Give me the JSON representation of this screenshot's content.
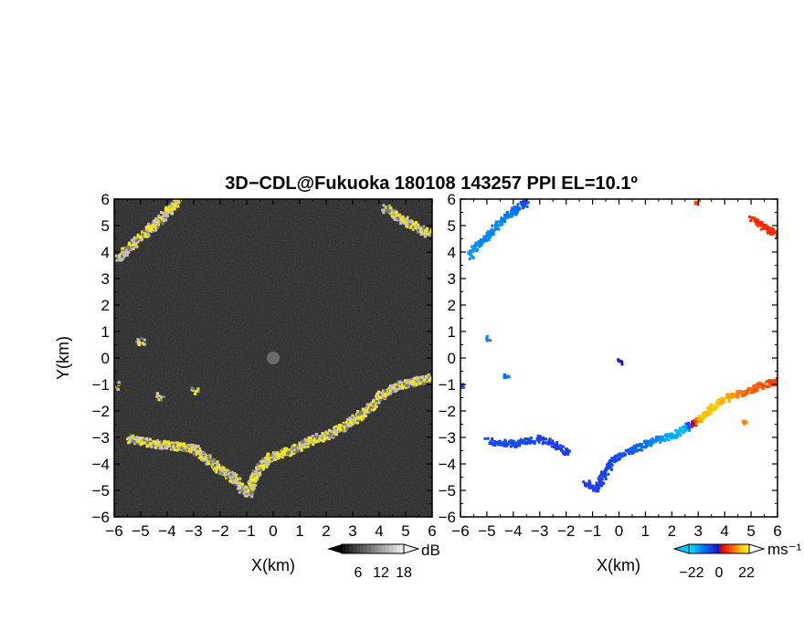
{
  "chart_data": [
    {
      "type": "heatmap",
      "panel": "left",
      "title": "3D−CDL@Fukuoka 180108 143257 PPI EL=10.1º",
      "xlabel": "X(km)",
      "ylabel": "Y(km)",
      "xlim": [
        -6,
        6
      ],
      "ylim": [
        -6,
        6
      ],
      "xticks": [
        "−6",
        "−5",
        "−4",
        "−3",
        "−2",
        "−1",
        "0",
        "1",
        "2",
        "3",
        "4",
        "5",
        "6"
      ],
      "yticks": [
        "−6",
        "−5",
        "−4",
        "−3",
        "−2",
        "−1",
        "0",
        "1",
        "2",
        "3",
        "4",
        "5",
        "6"
      ],
      "background_color": "#2b2b2b",
      "echo_colors": {
        "low": "#bdbdbd",
        "high": "#f5e620"
      },
      "colorbar": {
        "unit": "dB",
        "ticks": [
          "6",
          "12",
          "18"
        ],
        "range": [
          0,
          24
        ]
      },
      "echo_path": [
        [
          -5.9,
          3.8
        ],
        [
          -5.3,
          4.4
        ],
        [
          -4.6,
          5.0
        ],
        [
          -4.0,
          5.6
        ],
        [
          -3.6,
          6.0
        ],
        [
          -6.0,
          -1.0
        ],
        [
          -5.5,
          -3.0
        ],
        [
          -4.5,
          -3.2
        ],
        [
          -3.5,
          -3.3
        ],
        [
          -3.0,
          -3.4
        ],
        [
          -2.5,
          -3.8
        ],
        [
          -2.0,
          -4.2
        ],
        [
          -1.5,
          -4.5
        ],
        [
          -1.2,
          -4.9
        ],
        [
          -1.0,
          -5.1
        ],
        [
          -0.7,
          -4.3
        ],
        [
          -0.2,
          -3.7
        ],
        [
          0.5,
          -3.5
        ],
        [
          1.0,
          -3.3
        ],
        [
          1.5,
          -3.0
        ],
        [
          2.0,
          -2.9
        ],
        [
          2.5,
          -2.6
        ],
        [
          3.0,
          -2.3
        ],
        [
          3.5,
          -1.9
        ],
        [
          4.0,
          -1.4
        ],
        [
          4.5,
          -1.1
        ],
        [
          5.0,
          -0.9
        ],
        [
          5.5,
          -0.8
        ],
        [
          6.0,
          -0.7
        ],
        [
          4.2,
          5.7
        ],
        [
          4.8,
          5.3
        ],
        [
          5.5,
          4.9
        ],
        [
          6.0,
          4.7
        ],
        [
          -5.0,
          0.6
        ],
        [
          -5.1,
          0.7
        ],
        [
          -3.0,
          -1.2
        ],
        [
          -4.3,
          -1.4
        ]
      ]
    },
    {
      "type": "heatmap",
      "panel": "right",
      "xlabel": "X(km)",
      "xlim": [
        -6,
        6
      ],
      "ylim": [
        -6,
        6
      ],
      "xticks": [
        "−6",
        "−5",
        "−4",
        "−3",
        "−2",
        "−1",
        "0",
        "1",
        "2",
        "3",
        "4",
        "5",
        "6"
      ],
      "yticks": [
        "−6",
        "−5",
        "−4",
        "−3",
        "−2",
        "−1",
        "0",
        "1",
        "2",
        "3",
        "4",
        "5",
        "6"
      ],
      "colorbar": {
        "unit": "ms⁻¹",
        "ticks": [
          "−22",
          "0",
          "22"
        ],
        "range": [
          -30,
          30
        ]
      },
      "velocity_echoes": [
        {
          "x": -5.7,
          "y": 3.9,
          "v": -20
        },
        {
          "x": -5.2,
          "y": 4.5,
          "v": -18
        },
        {
          "x": -4.5,
          "y": 5.2,
          "v": -18
        },
        {
          "x": -4.0,
          "y": 5.6,
          "v": -16
        },
        {
          "x": -3.6,
          "y": 5.9,
          "v": -10
        },
        {
          "x": -5.0,
          "y": 0.8,
          "v": -18
        },
        {
          "x": -5.0,
          "y": -3.1,
          "v": -10
        },
        {
          "x": -4.0,
          "y": -3.2,
          "v": -10
        },
        {
          "x": -3.0,
          "y": -3.0,
          "v": -9
        },
        {
          "x": -2.0,
          "y": -3.5,
          "v": -8
        },
        {
          "x": -1.3,
          "y": -4.6,
          "v": -8
        },
        {
          "x": -0.9,
          "y": -4.9,
          "v": -8
        },
        {
          "x": -0.3,
          "y": -3.8,
          "v": -10
        },
        {
          "x": 0.5,
          "y": -3.4,
          "v": -12
        },
        {
          "x": 1.0,
          "y": -3.2,
          "v": -16
        },
        {
          "x": 1.5,
          "y": -3.0,
          "v": -18
        },
        {
          "x": 2.0,
          "y": -2.9,
          "v": -22
        },
        {
          "x": 2.5,
          "y": -2.6,
          "v": -24
        },
        {
          "x": 3.0,
          "y": -2.3,
          "v": 20
        },
        {
          "x": 3.4,
          "y": -1.9,
          "v": 22
        },
        {
          "x": 4.1,
          "y": -1.4,
          "v": 20
        },
        {
          "x": 4.6,
          "y": -1.3,
          "v": 14
        },
        {
          "x": 5.3,
          "y": -1.0,
          "v": 12
        },
        {
          "x": 5.9,
          "y": -0.8,
          "v": 10
        },
        {
          "x": 4.7,
          "y": -2.4,
          "v": 16
        },
        {
          "x": 5.0,
          "y": 5.3,
          "v": 8
        },
        {
          "x": 5.6,
          "y": 4.9,
          "v": 8
        },
        {
          "x": 6.0,
          "y": 4.7,
          "v": 8
        },
        {
          "x": 2.9,
          "y": 5.9,
          "v": 10
        },
        {
          "x": 0.0,
          "y": -0.1,
          "v": -2
        },
        {
          "x": -4.3,
          "y": -0.6,
          "v": -16
        },
        {
          "x": -6.0,
          "y": -1.0,
          "v": -10
        }
      ]
    }
  ]
}
